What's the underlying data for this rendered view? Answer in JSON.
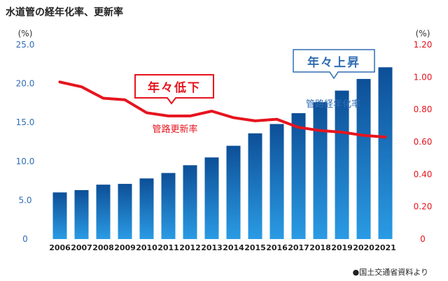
{
  "title": "水道管の経年化率、更新率",
  "source_note": "●国土交通省資料より",
  "colors": {
    "bar_top": "#0d4f97",
    "bar_bottom": "#2a9be4",
    "line": "#e6141e",
    "left_axis": "#2f6db3",
    "right_axis": "#e6141e"
  },
  "chart_data": {
    "type": "bar+line",
    "categories": [
      "2006",
      "2007",
      "2008",
      "2009",
      "2010",
      "2011",
      "2012",
      "2013",
      "2014",
      "2015",
      "2016",
      "2017",
      "2018",
      "2019",
      "2020",
      "2021"
    ],
    "series": [
      {
        "name": "管路経年化率",
        "type": "bar",
        "axis": "left",
        "values": [
          6.0,
          6.3,
          7.0,
          7.1,
          7.8,
          8.5,
          9.5,
          10.5,
          12.0,
          13.6,
          14.8,
          16.2,
          17.6,
          19.1,
          20.6,
          22.1
        ]
      },
      {
        "name": "管路更新率",
        "type": "line",
        "axis": "right",
        "values": [
          0.97,
          0.94,
          0.87,
          0.86,
          0.78,
          0.76,
          0.76,
          0.79,
          0.75,
          0.73,
          0.74,
          0.69,
          0.67,
          0.66,
          0.64,
          0.63
        ]
      }
    ],
    "y_left": {
      "unit": "(%)",
      "ylim": [
        0,
        25
      ],
      "ticks": [
        "0",
        "5.0",
        "10.0",
        "15.0",
        "20.0",
        "25.0"
      ]
    },
    "y_right": {
      "unit": "(%)",
      "ylim": [
        0,
        1.2
      ],
      "ticks": [
        "0",
        "0.20",
        "0.40",
        "0.60",
        "0.80",
        "1.00",
        "1.20"
      ]
    },
    "annotations": {
      "red_box": "年々低下",
      "blue_box": "年々上昇"
    },
    "grid": false
  }
}
